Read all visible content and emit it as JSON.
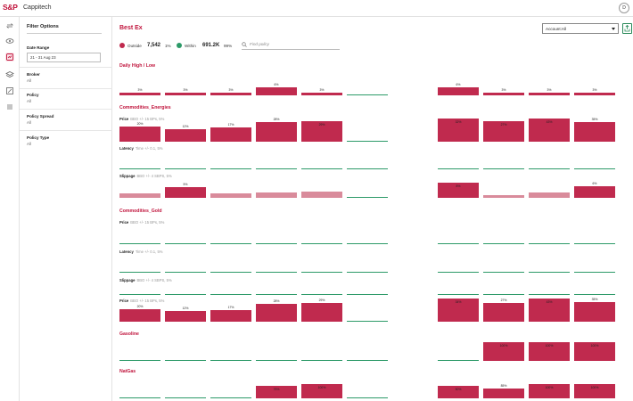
{
  "header": {
    "logo": "S&P",
    "app_name": "Cappitech",
    "avatar_initial": "D"
  },
  "rail": {
    "icons": [
      "sync-icon",
      "eye-icon",
      "chart-icon",
      "layers-icon",
      "report-icon",
      "list-icon"
    ],
    "active_index": 2
  },
  "filters": {
    "title": "Filter Options",
    "date_range": {
      "label": "Date Range",
      "value": "21 - 31 Aug 23"
    },
    "groups": [
      {
        "label": "Broker",
        "value": "All"
      },
      {
        "label": "Policy",
        "value": "All"
      },
      {
        "label": "Policy Spread",
        "value": "All"
      },
      {
        "label": "Policy Type",
        "value": "All"
      }
    ]
  },
  "main": {
    "title": "Best Ex",
    "account_select": "Account:All",
    "search_placeholder": "Find policy",
    "legend": {
      "outside": {
        "label": "Outside",
        "value": "7,542",
        "pct": "1%",
        "color": "#c02a4e"
      },
      "within": {
        "label": "Within",
        "value": "691.2K",
        "pct": "99%",
        "color": "#2c9a68"
      }
    }
  },
  "sections": [
    {
      "title": "Daily High / Low",
      "rows": [
        {
          "label": "",
          "sublabel": "",
          "bars": [
            {
              "t": "red",
              "f": 0.25,
              "l": "3%"
            },
            {
              "t": "red",
              "f": 0.25,
              "l": "3%"
            },
            {
              "t": "red",
              "f": 0.25,
              "l": "3%"
            },
            {
              "t": "red",
              "f": 0.7,
              "l": "6%"
            },
            {
              "t": "red",
              "f": 0.25,
              "l": "3%"
            },
            {
              "t": "green",
              "f": 0,
              "l": ""
            },
            {
              "t": "red",
              "f": 0.7,
              "l": "6%"
            },
            {
              "t": "red",
              "f": 0.25,
              "l": "3%"
            },
            {
              "t": "red",
              "f": 0.25,
              "l": "3%"
            },
            {
              "t": "red",
              "f": 0.25,
              "l": "3%"
            }
          ]
        }
      ]
    },
    {
      "title": "Commodities_Energies",
      "rows": [
        {
          "label": "Price",
          "sublabel": "BBO +/- 15 BPs, 5%",
          "bars": [
            {
              "t": "red",
              "f": 0.65,
              "l": "20%"
            },
            {
              "t": "red",
              "f": 0.55,
              "l": "12%"
            },
            {
              "t": "red",
              "f": 0.6,
              "l": "17%"
            },
            {
              "t": "red",
              "f": 0.85,
              "l": "28%"
            },
            {
              "t": "red",
              "f": 0.9,
              "l": "29%"
            },
            {
              "t": "green",
              "f": 0,
              "l": ""
            },
            {
              "t": "red",
              "f": 1,
              "l": "32%"
            },
            {
              "t": "red",
              "f": 0.9,
              "l": "27%"
            },
            {
              "t": "red",
              "f": 1,
              "l": "43%"
            },
            {
              "t": "red",
              "f": 0.85,
              "l": "35%"
            }
          ]
        },
        {
          "label": "Latency",
          "sublabel": "Time +/- 0.1, 5%",
          "bars": [
            {
              "t": "green",
              "f": 0,
              "l": ""
            },
            {
              "t": "green",
              "f": 0,
              "l": ""
            },
            {
              "t": "green",
              "f": 0,
              "l": ""
            },
            {
              "t": "green",
              "f": 0,
              "l": ""
            },
            {
              "t": "green",
              "f": 0,
              "l": ""
            },
            {
              "t": "green",
              "f": 0,
              "l": ""
            },
            {
              "t": "green",
              "f": 0,
              "l": ""
            },
            {
              "t": "green",
              "f": 0,
              "l": ""
            },
            {
              "t": "green",
              "f": 0,
              "l": ""
            },
            {
              "t": "green",
              "f": 0,
              "l": ""
            }
          ]
        },
        {
          "label": "Slippage",
          "sublabel": "BBO +/- 4 SBPS, 5%",
          "bars": [
            {
              "t": "pink",
              "f": 0.3,
              "l": ""
            },
            {
              "t": "red",
              "f": 0.65,
              "l": "5%"
            },
            {
              "t": "pink",
              "f": 0.3,
              "l": ""
            },
            {
              "t": "pink",
              "f": 0.35,
              "l": ""
            },
            {
              "t": "pink",
              "f": 0.4,
              "l": ""
            },
            {
              "t": "green",
              "f": 0,
              "l": ""
            },
            {
              "t": "red",
              "f": 0.95,
              "l": "8%"
            },
            {
              "t": "pink",
              "f": 0.15,
              "l": ""
            },
            {
              "t": "pink",
              "f": 0.35,
              "l": ""
            },
            {
              "t": "red",
              "f": 0.7,
              "l": "6%"
            }
          ]
        }
      ]
    },
    {
      "title": "Commodities_Gold",
      "rows": [
        {
          "label": "Price",
          "sublabel": "BBO +/- 15 BPs, 5%",
          "bars": [
            {
              "t": "green",
              "f": 0,
              "l": ""
            },
            {
              "t": "green",
              "f": 0,
              "l": ""
            },
            {
              "t": "green",
              "f": 0,
              "l": ""
            },
            {
              "t": "green",
              "f": 0,
              "l": ""
            },
            {
              "t": "green",
              "f": 0,
              "l": ""
            },
            {
              "t": "green",
              "f": 0,
              "l": ""
            },
            {
              "t": "green",
              "f": 0,
              "l": ""
            },
            {
              "t": "green",
              "f": 0,
              "l": ""
            },
            {
              "t": "green",
              "f": 0,
              "l": ""
            },
            {
              "t": "green",
              "f": 0,
              "l": ""
            }
          ]
        },
        {
          "label": "Latency",
          "sublabel": "Time +/- 0.1, 5%",
          "bars": [
            {
              "t": "green",
              "f": 0,
              "l": ""
            },
            {
              "t": "green",
              "f": 0,
              "l": ""
            },
            {
              "t": "green",
              "f": 0,
              "l": ""
            },
            {
              "t": "green",
              "f": 0,
              "l": ""
            },
            {
              "t": "green",
              "f": 0,
              "l": ""
            },
            {
              "t": "green",
              "f": 0,
              "l": ""
            },
            {
              "t": "green",
              "f": 0,
              "l": ""
            },
            {
              "t": "green",
              "f": 0,
              "l": ""
            },
            {
              "t": "green",
              "f": 0,
              "l": ""
            },
            {
              "t": "green",
              "f": 0,
              "l": ""
            }
          ]
        },
        {
          "label": "Slippage",
          "sublabel": "BBO +/- 4 SBPS, 5%",
          "bars": [
            {
              "t": "green",
              "f": 0,
              "l": ""
            },
            {
              "t": "green",
              "f": 0,
              "l": ""
            },
            {
              "t": "green",
              "f": 0,
              "l": ""
            },
            {
              "t": "green",
              "f": 0,
              "l": ""
            },
            {
              "t": "green",
              "f": 0,
              "l": ""
            },
            {
              "t": "green",
              "f": 0,
              "l": ""
            },
            {
              "t": "green",
              "f": 0,
              "l": ""
            },
            {
              "t": "green",
              "f": 0,
              "l": ""
            },
            {
              "t": "green",
              "f": 0,
              "l": ""
            },
            {
              "t": "green",
              "f": 0,
              "l": ""
            }
          ]
        },
        {
          "label": "Price",
          "sublabel": "BBO +/- 15 BPs, 5%",
          "bars": [
            {
              "t": "red",
              "f": 0.55,
              "l": "20%"
            },
            {
              "t": "red",
              "f": 0.45,
              "l": "12%"
            },
            {
              "t": "red",
              "f": 0.5,
              "l": "17%"
            },
            {
              "t": "red",
              "f": 0.75,
              "l": "28%"
            },
            {
              "t": "red",
              "f": 0.8,
              "l": "29%"
            },
            {
              "t": "green",
              "f": 0,
              "l": ""
            },
            {
              "t": "red",
              "f": 1,
              "l": "34%"
            },
            {
              "t": "red",
              "f": 0.8,
              "l": "27%"
            },
            {
              "t": "red",
              "f": 1,
              "l": "43%"
            },
            {
              "t": "red",
              "f": 0.85,
              "l": "35%"
            }
          ]
        }
      ]
    },
    {
      "title": "Gasoline",
      "rows": [
        {
          "label": "",
          "sublabel": "",
          "bars": [
            {
              "t": "green",
              "f": 0,
              "l": ""
            },
            {
              "t": "green",
              "f": 0,
              "l": ""
            },
            {
              "t": "green",
              "f": 0,
              "l": ""
            },
            {
              "t": "green",
              "f": 0,
              "l": ""
            },
            {
              "t": "green",
              "f": 0,
              "l": ""
            },
            {
              "t": "green",
              "f": 0,
              "l": ""
            },
            {
              "t": "green",
              "f": 0,
              "l": ""
            },
            {
              "t": "red",
              "f": 1,
              "l": "100%"
            },
            {
              "t": "red",
              "f": 1,
              "l": "100%"
            },
            {
              "t": "red",
              "f": 1,
              "l": "100%"
            }
          ]
        }
      ]
    },
    {
      "title": "NatGas",
      "rows": [
        {
          "label": "",
          "sublabel": "",
          "bars": [
            {
              "t": "green",
              "f": 0,
              "l": ""
            },
            {
              "t": "green",
              "f": 0,
              "l": ""
            },
            {
              "t": "green",
              "f": 0,
              "l": ""
            },
            {
              "t": "red",
              "f": 0.85,
              "l": "75%"
            },
            {
              "t": "red",
              "f": 1,
              "l": "100%"
            },
            {
              "t": "green",
              "f": 0,
              "l": ""
            },
            {
              "t": "red",
              "f": 0.85,
              "l": "50%"
            },
            {
              "t": "red",
              "f": 0.7,
              "l": "85%"
            },
            {
              "t": "red",
              "f": 1,
              "l": "100%"
            },
            {
              "t": "red",
              "f": 1,
              "l": "100%"
            }
          ]
        }
      ]
    }
  ]
}
